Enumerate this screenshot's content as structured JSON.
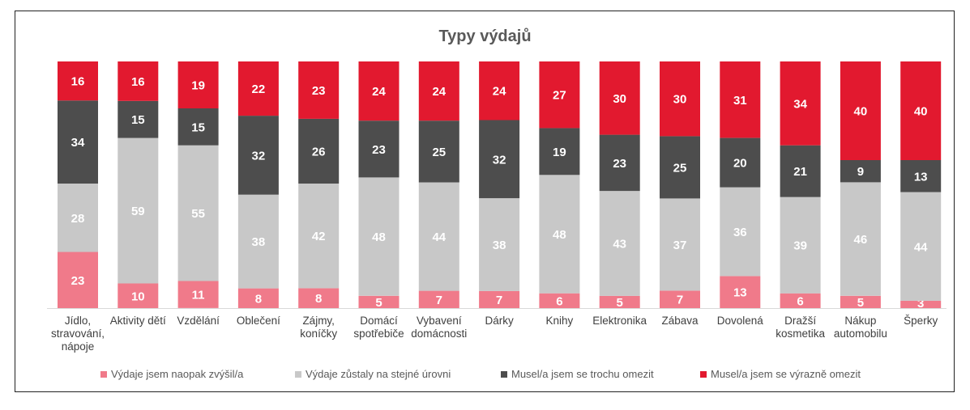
{
  "chart_data": {
    "type": "bar",
    "stacked": true,
    "title": "Typy výdajů",
    "categories": [
      "Jídlo,\nstravování,\nnápoje",
      "Aktivity dětí",
      "Vzdělání",
      "Oblečení",
      "Zájmy,\nkoníčky",
      "Domácí\nspotřebiče",
      "Vybavení\ndomácnosti",
      "Dárky",
      "Knihy",
      "Elektronika",
      "Zábava",
      "Dovolená",
      "Dražší\nkosmetika",
      "Nákup\nautomobilu",
      "Šperky"
    ],
    "series": [
      {
        "name": "Výdaje jsem naopak zvýšil/a",
        "color": "#F07A8A",
        "values": [
          23,
          10,
          11,
          8,
          8,
          5,
          7,
          7,
          6,
          5,
          7,
          13,
          6,
          5,
          3
        ]
      },
      {
        "name": "Výdaje zůstaly na stejné úrovni",
        "color": "#C8C8C8",
        "values": [
          28,
          59,
          55,
          38,
          42,
          48,
          44,
          38,
          48,
          43,
          37,
          36,
          39,
          46,
          44
        ]
      },
      {
        "name": "Musel/a jsem se trochu omezit",
        "color": "#4D4D4D",
        "values": [
          34,
          15,
          15,
          32,
          26,
          23,
          25,
          32,
          19,
          23,
          25,
          20,
          21,
          9,
          13
        ]
      },
      {
        "name": "Musel/a jsem se výrazně omezit",
        "color": "#E2192F",
        "values": [
          16,
          16,
          19,
          22,
          23,
          24,
          24,
          24,
          27,
          30,
          30,
          31,
          34,
          40,
          40
        ]
      }
    ],
    "ylim": [
      0,
      100
    ],
    "grid": false,
    "legend": "bottom"
  }
}
